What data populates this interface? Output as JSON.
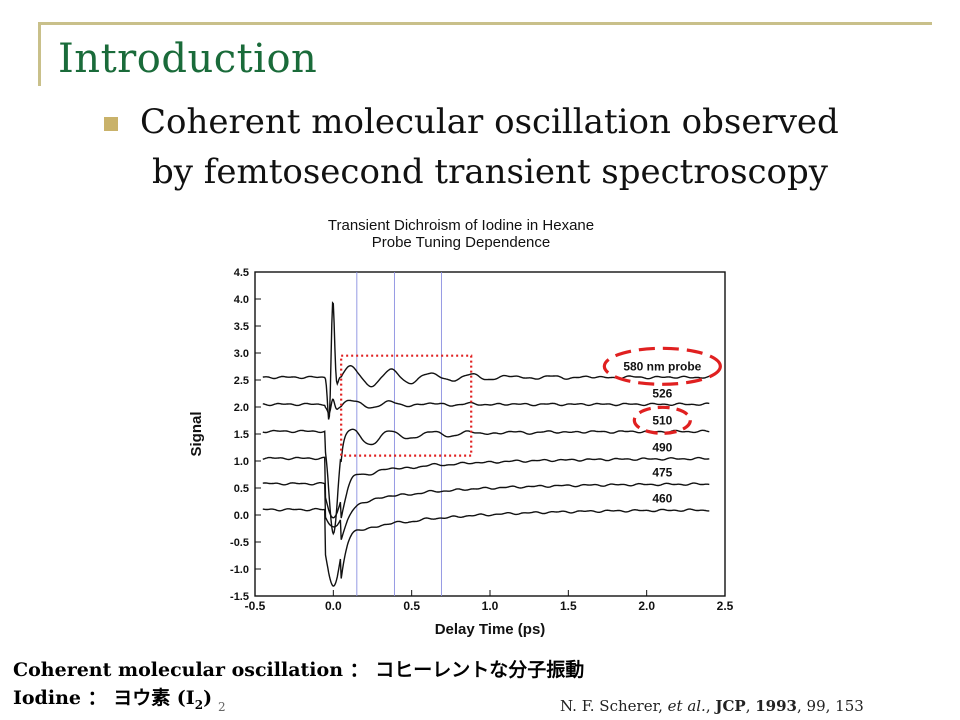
{
  "slide": {
    "title": "Introduction",
    "bullet_line1": "Coherent molecular oscillation observed",
    "bullet_line2": "by femtosecond transient spectroscopy",
    "gloss1": "Coherent molecular oscillation ： コヒーレントな分子振動",
    "gloss2_prefix": "Iodine ： ヨウ素 (I",
    "gloss2_sub": "2",
    "gloss2_suffix": ")",
    "page_number": "2",
    "citation": {
      "authors": "N. F. Scherer, ",
      "etal": "et al.",
      "sep1": ", ",
      "journal": "JCP",
      "sep2": ", ",
      "year": "1993",
      "rest": ", 99, 153"
    }
  },
  "chart_data": {
    "type": "line",
    "title": "Transient Dichroism of Iodine in Hexane",
    "subtitle": "Probe Tuning Dependence",
    "xlabel": "Delay Time (ps)",
    "ylabel": "Signal",
    "xlim": [
      -0.5,
      2.5
    ],
    "ylim": [
      -1.5,
      4.5
    ],
    "x_ticks": [
      "-0.5",
      "0.0",
      "0.5",
      "1.0",
      "1.5",
      "2.0",
      "2.5"
    ],
    "y_ticks": [
      "4.5",
      "4.0",
      "3.5",
      "3.0",
      "2.5",
      "2.0",
      "1.5",
      "1.0",
      "0.5",
      "0.0",
      "-0.5",
      "-1.0",
      "-1.5"
    ],
    "vertical_reference_lines_ps": [
      0.15,
      0.39,
      0.69
    ],
    "highlight_box_ps": {
      "x": [
        0.05,
        0.88
      ],
      "y": [
        1.1,
        2.95
      ]
    },
    "series": [
      {
        "name": "580 nm probe",
        "baseline": 2.55
      },
      {
        "name": "526",
        "baseline": 2.05
      },
      {
        "name": "510",
        "baseline": 1.55
      },
      {
        "name": "490",
        "baseline": 1.05
      },
      {
        "name": "475",
        "baseline": 0.58
      },
      {
        "name": "460",
        "baseline": 0.1
      }
    ],
    "legend": "labels right of each trace",
    "grid": false,
    "colors": {
      "trace": "#111111",
      "ref_lines": "#8a8fe0",
      "box": "#e02020",
      "ellipse": "#e02020"
    }
  }
}
